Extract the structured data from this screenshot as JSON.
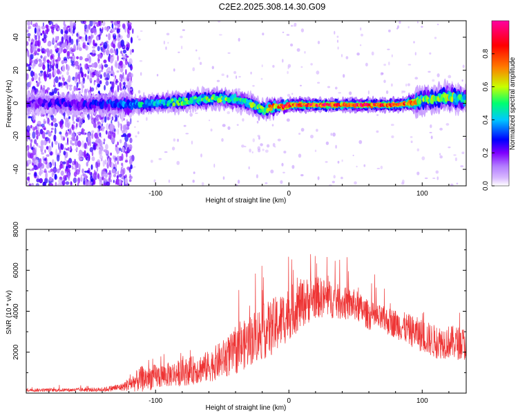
{
  "title": "C2E2.2025.308.14.30.G09",
  "chart_data": [
    {
      "type": "heatmap",
      "title": "C2E2.2025.308.14.30.G09",
      "xlabel": "Height of straight line (km)",
      "ylabel": "Frequency (Hz)",
      "xlim": [
        -197,
        133
      ],
      "ylim": [
        -50,
        50
      ],
      "xticks": [
        -100,
        0,
        100
      ],
      "yticks": [
        -40,
        -20,
        0,
        20,
        40
      ],
      "colorbar": {
        "label": "Normalized spectral amplitude",
        "range": [
          0,
          1
        ],
        "ticks": [
          0.0,
          0.2,
          0.4,
          0.6,
          0.8
        ],
        "colors": [
          "#ffffff",
          "#b27cff",
          "#7f00ff",
          "#0000ff",
          "#00c8ff",
          "#00ff70",
          "#c8ff00",
          "#ff7a00",
          "#ff0000",
          "#ff00a0"
        ]
      },
      "ridge": {
        "x": [
          -197,
          -170,
          -150,
          -130,
          -120,
          -100,
          -80,
          -60,
          -50,
          -40,
          -30,
          -20,
          -10,
          0,
          20,
          40,
          60,
          80,
          90,
          100,
          110,
          120,
          133
        ],
        "frequency": [
          0,
          0,
          -1,
          0,
          -1,
          0,
          1,
          3,
          3,
          2,
          0,
          -4,
          -2,
          -1,
          -1,
          -1,
          -1,
          -1,
          0,
          2,
          3,
          4,
          2
        ],
        "amplitude": [
          0.2,
          0.25,
          0.25,
          0.3,
          0.4,
          0.45,
          0.5,
          0.55,
          0.55,
          0.5,
          0.5,
          0.6,
          0.75,
          0.9,
          0.9,
          0.88,
          0.88,
          0.88,
          0.8,
          0.55,
          0.55,
          0.55,
          0.5
        ]
      },
      "noise_region": {
        "x_from": -197,
        "x_to": -117,
        "amplitude": 0.2
      }
    },
    {
      "type": "line",
      "xlabel": "Height of straight line (km)",
      "ylabel": "SNR (10 * v/v)",
      "xlim": [
        -197,
        133
      ],
      "ylim": [
        0,
        8000
      ],
      "xticks": [
        -100,
        0,
        100
      ],
      "yticks": [
        2000,
        4000,
        6000,
        8000
      ],
      "series": [
        {
          "name": "SNR",
          "color": "#ee3333",
          "x": [
            -197,
            -170,
            -140,
            -125,
            -110,
            -100,
            -90,
            -80,
            -60,
            -40,
            -25,
            -10,
            0,
            10,
            20,
            30,
            40,
            50,
            60,
            70,
            80,
            90,
            100,
            110,
            120,
            133
          ],
          "base": [
            150,
            150,
            170,
            300,
            700,
            800,
            900,
            1000,
            1300,
            2000,
            2800,
            3300,
            3900,
            4400,
            4700,
            4600,
            4400,
            4300,
            3800,
            3600,
            3400,
            3100,
            2800,
            2500,
            2500,
            2400
          ],
          "spread": [
            150,
            150,
            200,
            350,
            1200,
            1100,
            1100,
            1200,
            1400,
            2000,
            2400,
            2600,
            2400,
            2200,
            1900,
            1700,
            1500,
            1400,
            1300,
            1200,
            1300,
            1400,
            1500,
            1500,
            1500,
            1500
          ]
        }
      ]
    }
  ]
}
